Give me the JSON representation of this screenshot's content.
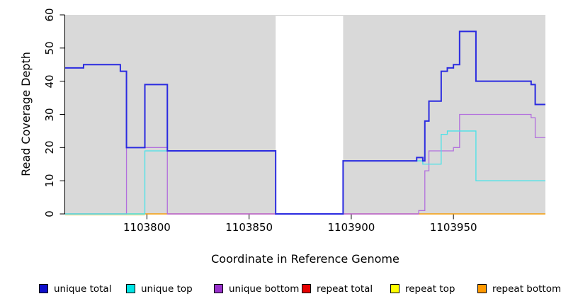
{
  "figure": {
    "background": "#ffffff",
    "plot_bg": "#d9d9d9",
    "axis_color": "#000000",
    "gap_edge_color": "#c9c9c9"
  },
  "chart_data": {
    "type": "line",
    "subtype": "step",
    "title": "",
    "xlabel": "Coordinate in Reference Genome",
    "ylabel": "Read Coverage Depth",
    "xlim": [
      1103760,
      1103995
    ],
    "ylim": [
      0,
      60
    ],
    "x_ticks": [
      1103800,
      1103850,
      1103900,
      1103950
    ],
    "y_ticks": [
      0,
      10,
      20,
      30,
      40,
      50,
      60
    ],
    "grid": false,
    "legend_position": "bottom",
    "gap_region": {
      "x_start": 1103863,
      "x_end": 1103896,
      "fill": "#ffffff"
    },
    "baseline_segments": [
      {
        "name": "repeat-top-baseline",
        "color": "#ece0a0",
        "x_start": 1103760,
        "x_end": 1103799,
        "y": 0,
        "dy": 1.5
      },
      {
        "name": "unique-top-yellow-overlap-baseline",
        "color": "#7cc87c",
        "x_start": 1103760,
        "x_end": 1103799,
        "y": 0,
        "dy": 0
      },
      {
        "name": "repeat-bottom-baseline-left",
        "color": "#f59d0c",
        "x_start": 1103799,
        "x_end": 1103810,
        "y": 0,
        "dy": 0
      },
      {
        "name": "repeat-total-baseline",
        "color": "#d4376e",
        "x_start": 1103810,
        "x_end": 1103933,
        "y": 0,
        "dy": 0
      },
      {
        "name": "repeat-bottom-baseline-right",
        "color": "#f59d0c",
        "x_start": 1103933,
        "x_end": 1103995,
        "y": 0,
        "dy": 0
      }
    ],
    "series": [
      {
        "name": "unique bottom",
        "color": "#b26fdd",
        "lw": 1.3,
        "steps": [
          [
            1103760,
            0
          ],
          [
            1103790,
            20
          ],
          [
            1103810,
            0
          ],
          [
            1103933,
            1
          ],
          [
            1103936,
            13
          ],
          [
            1103938,
            19
          ],
          [
            1103950,
            20
          ],
          [
            1103953,
            30
          ],
          [
            1103988,
            29
          ],
          [
            1103990,
            23
          ]
        ]
      },
      {
        "name": "unique top",
        "color": "#49e2e8",
        "lw": 1.3,
        "steps": [
          [
            1103760,
            0
          ],
          [
            1103799,
            19
          ],
          [
            1103863,
            0
          ],
          [
            1103896,
            16
          ],
          [
            1103935,
            15
          ],
          [
            1103944,
            24
          ],
          [
            1103947,
            25
          ],
          [
            1103961,
            10
          ]
        ]
      },
      {
        "name": "unique total",
        "color": "#2b2be0",
        "lw": 2,
        "steps": [
          [
            1103760,
            44
          ],
          [
            1103769,
            45
          ],
          [
            1103787,
            43
          ],
          [
            1103790,
            20
          ],
          [
            1103799,
            39
          ],
          [
            1103810,
            19
          ],
          [
            1103863,
            0
          ],
          [
            1103896,
            16
          ],
          [
            1103932,
            17
          ],
          [
            1103935,
            16
          ],
          [
            1103936,
            28
          ],
          [
            1103938,
            34
          ],
          [
            1103944,
            43
          ],
          [
            1103947,
            44
          ],
          [
            1103950,
            45
          ],
          [
            1103953,
            55
          ],
          [
            1103961,
            40
          ],
          [
            1103988,
            39
          ],
          [
            1103990,
            33
          ]
        ]
      }
    ]
  },
  "legend": {
    "items": [
      {
        "label": "unique total",
        "fill": "#0f0fcc"
      },
      {
        "label": "unique top",
        "fill": "#00e5e5"
      },
      {
        "label": "unique bottom",
        "fill": "#9932cc"
      },
      {
        "label": "repeat total",
        "fill": "#e60000"
      },
      {
        "label": "repeat top",
        "fill": "#ffff00"
      },
      {
        "label": "repeat bottom",
        "fill": "#ff9900"
      }
    ]
  }
}
